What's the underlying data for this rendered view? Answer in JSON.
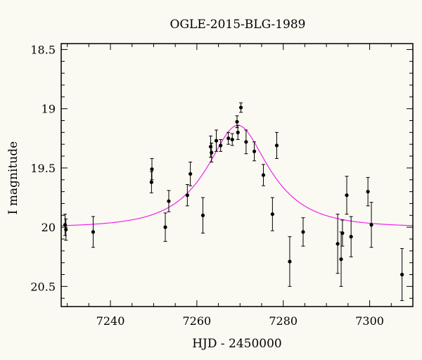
{
  "chart_data": {
    "type": "scatter",
    "title": "OGLE-2015-BLG-1989",
    "xlabel": "HJD - 2450000",
    "ylabel": "I magnitude",
    "xlim": [
      7228.6,
      7310
    ],
    "ylim": [
      20.67,
      18.45
    ],
    "y_inverted": true,
    "grid": false,
    "legend": "none",
    "colors": {
      "background": "#fafaf2",
      "points": "#000000",
      "model": "#ee22ee"
    },
    "x_ticks": [
      7240,
      7260,
      7280,
      7300
    ],
    "y_ticks": [
      18.5,
      19,
      19.5,
      20,
      20.5
    ],
    "x_tick_labels": [
      "7240",
      "7260",
      "7280",
      "7300"
    ],
    "y_tick_labels": [
      "18.5",
      "19",
      "19.5",
      "20",
      "20.5"
    ],
    "series": [
      {
        "type": "errorbar-scatter",
        "x": [
          7229.5,
          7229.7,
          7236.0,
          7249.5,
          7249.6,
          7252.7,
          7253.5,
          7257.8,
          7258.5,
          7261.4,
          7263.2,
          7263.4,
          7264.5,
          7265.5,
          7267.3,
          7268.2,
          7269.3,
          7269.5,
          7270.2,
          7271.4,
          7273.3,
          7275.4,
          7277.5,
          7278.5,
          7281.5,
          7284.6,
          7292.6,
          7293.4,
          7293.7,
          7294.7,
          7295.7,
          7299.6,
          7300.4,
          7307.5
        ],
        "y": [
          19.98,
          20.02,
          20.04,
          19.62,
          19.51,
          20.0,
          19.78,
          19.73,
          19.55,
          19.9,
          19.32,
          19.37,
          19.27,
          19.31,
          19.25,
          19.26,
          19.11,
          19.2,
          18.99,
          19.28,
          19.36,
          19.56,
          19.89,
          19.31,
          20.29,
          20.04,
          20.14,
          20.27,
          20.05,
          19.73,
          20.08,
          19.7,
          19.98,
          20.4
        ],
        "yerr": [
          0.09,
          0.09,
          0.13,
          0.09,
          0.09,
          0.12,
          0.09,
          0.09,
          0.1,
          0.15,
          0.09,
          0.08,
          0.09,
          0.05,
          0.05,
          0.05,
          0.05,
          0.06,
          0.04,
          0.1,
          0.08,
          0.09,
          0.14,
          0.11,
          0.21,
          0.12,
          0.25,
          0.23,
          0.11,
          0.16,
          0.17,
          0.12,
          0.19,
          0.22
        ]
      },
      {
        "type": "model-curve",
        "model": {
          "t0": 7269.5,
          "peak_mag": 19.14,
          "base_mag": 20.0,
          "tE": 12.5
        }
      }
    ]
  }
}
